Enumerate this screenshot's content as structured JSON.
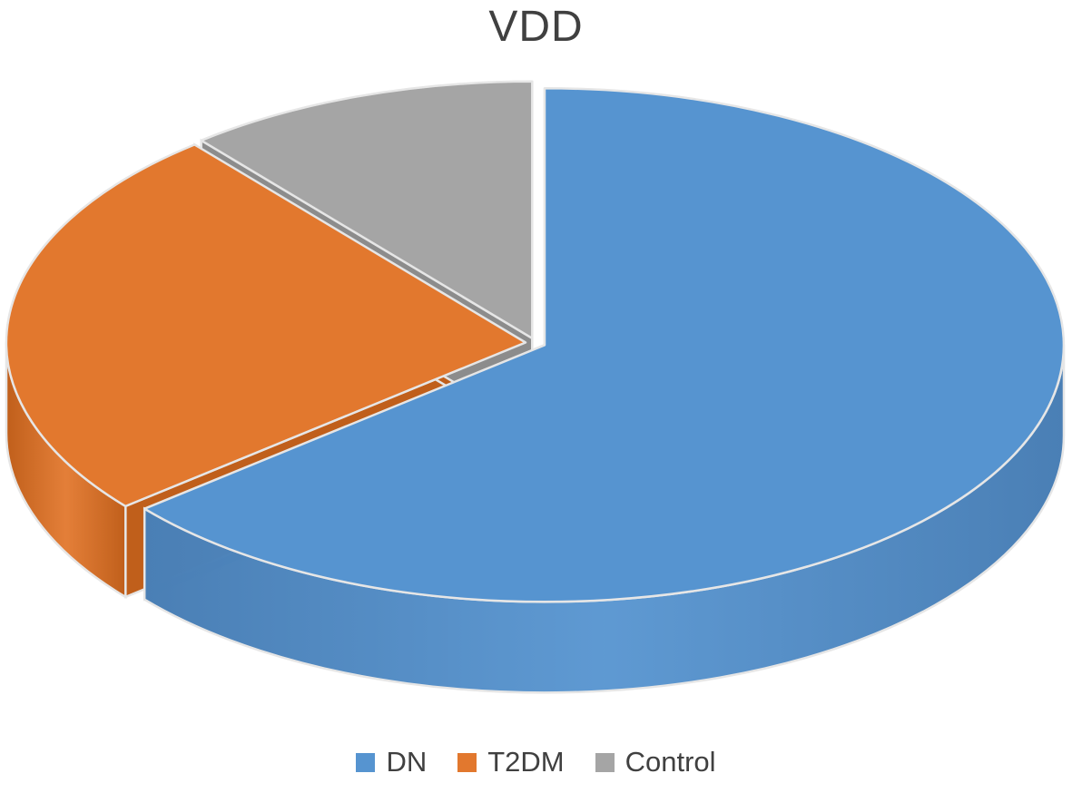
{
  "chart_data": {
    "type": "pie",
    "title": "VDD",
    "slices": [
      {
        "label": "DN",
        "value": 64,
        "color": "#5694d0",
        "side_color": "#4a7fb5"
      },
      {
        "label": "T2DM",
        "value": 25,
        "color": "#e2782e",
        "side_color": "#c05f1b"
      },
      {
        "label": "Control",
        "value": 11,
        "color": "#a5a5a5",
        "side_color": "#8c8c8c"
      }
    ],
    "legend_position": "bottom"
  }
}
